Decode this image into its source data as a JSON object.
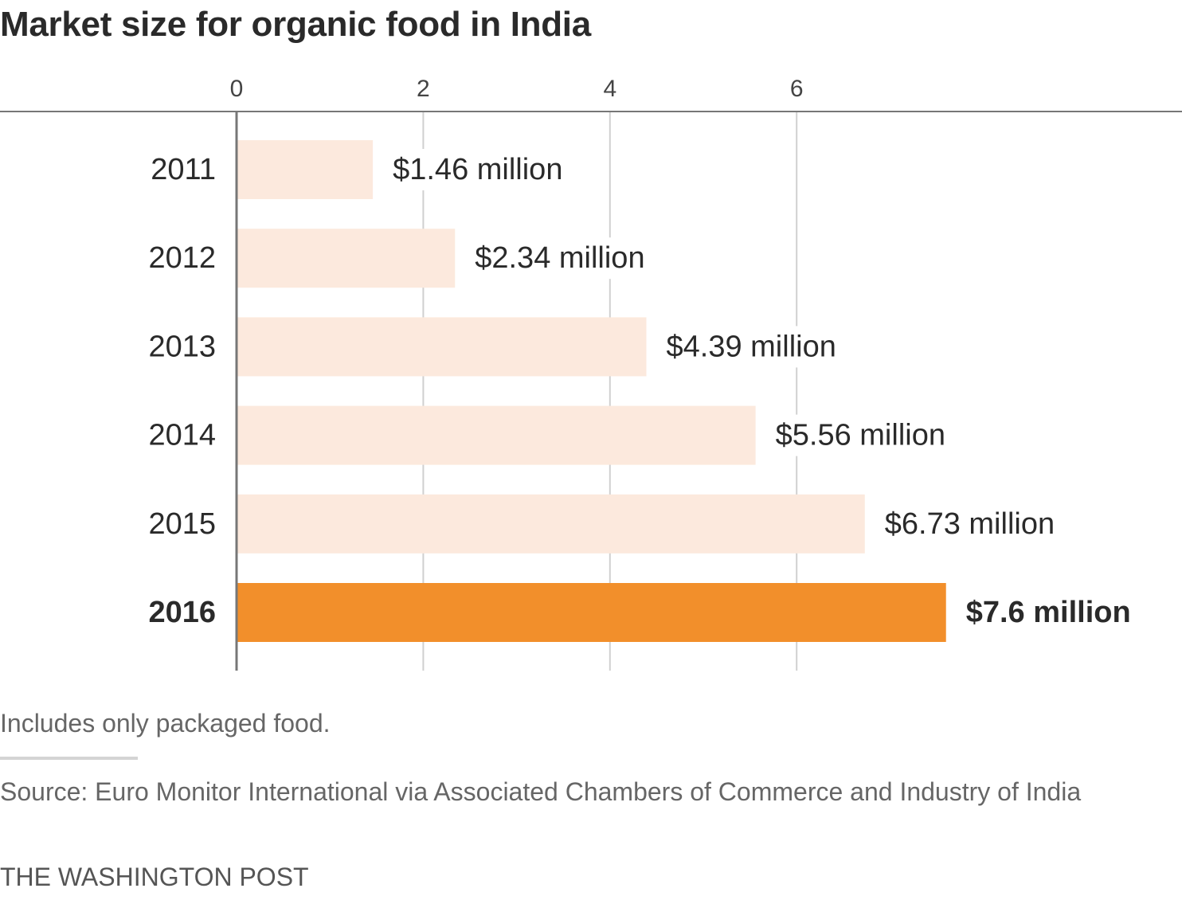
{
  "title": "Market size for organic food in India",
  "note": "Includes only packaged food.",
  "source": "Source: Euro Monitor International via Associated Chambers of Commerce and Industry of India",
  "credit": "THE WASHINGTON POST",
  "colors": {
    "bar": "#fce9dd",
    "highlight": "#f28f2b",
    "grid": "#d0d0d0",
    "axis": "#777777",
    "text": "#2a2a2a"
  },
  "chart_data": {
    "type": "bar",
    "orientation": "horizontal",
    "categories": [
      "2011",
      "2012",
      "2013",
      "2014",
      "2015",
      "2016"
    ],
    "values": [
      1.46,
      2.34,
      4.39,
      5.56,
      6.73,
      7.6
    ],
    "value_labels": [
      "$1.46 million",
      "$2.34 million",
      "$4.39 million",
      "$5.56 million",
      "$6.73 million",
      "$7.6 million"
    ],
    "highlight_category": "2016",
    "xticks": [
      0,
      2,
      4,
      6
    ],
    "xlim": [
      0,
      8
    ],
    "grid": true,
    "xaxis_position": "top"
  }
}
